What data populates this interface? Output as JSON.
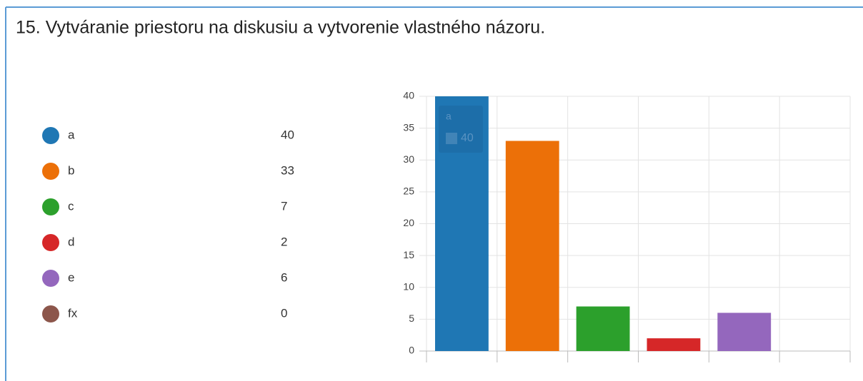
{
  "chart_data": {
    "type": "bar",
    "title": "15.  Vytváranie priestoru na diskusiu a vytvorenie vlastného názoru.",
    "categories": [
      "a",
      "b",
      "c",
      "d",
      "e",
      "fx"
    ],
    "values": [
      40,
      33,
      7,
      2,
      6,
      0
    ],
    "colors": [
      "#1f77b4",
      "#ec7008",
      "#2ca02c",
      "#d62728",
      "#9467bd",
      "#8c564b"
    ],
    "ylim": [
      0,
      40
    ],
    "yticks": [
      0,
      5,
      10,
      15,
      20,
      25,
      30,
      35,
      40
    ],
    "grid": true
  }
}
